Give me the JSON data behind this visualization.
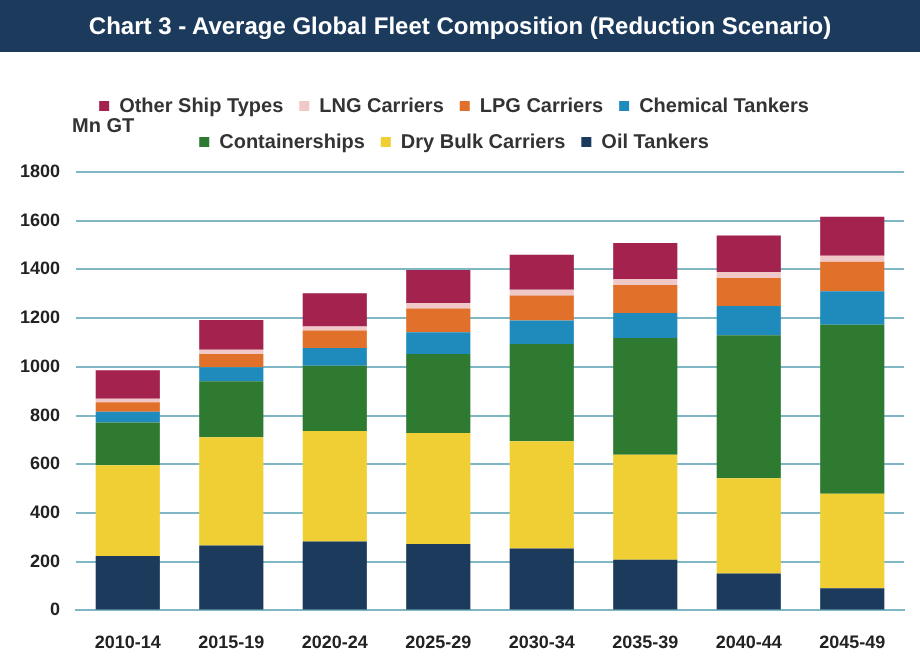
{
  "chart_data": {
    "type": "bar",
    "stacked": true,
    "title": "Chart 3 - Average Global Fleet Composition (Reduction Scenario)",
    "ylabel": "Mn GT",
    "categories": [
      "2010-14",
      "2015-19",
      "2020-24",
      "2025-29",
      "2030-34",
      "2035-39",
      "2040-44",
      "2045-49"
    ],
    "series": [
      {
        "name": "Oil Tankers",
        "color": "#1b3a5c",
        "values": [
          223,
          266,
          283,
          273,
          254,
          208,
          151,
          91
        ]
      },
      {
        "name": "Dry Bulk Carriers",
        "color": "#efcf34",
        "values": [
          373,
          445,
          454,
          455,
          440,
          431,
          392,
          388
        ]
      },
      {
        "name": "Containerships",
        "color": "#2e7a30",
        "values": [
          175,
          230,
          268,
          325,
          400,
          479,
          587,
          694
        ]
      },
      {
        "name": "Chemical Tankers",
        "color": "#1f8bbd",
        "values": [
          45,
          57,
          72,
          89,
          96,
          103,
          120,
          137
        ]
      },
      {
        "name": "LPG Carriers",
        "color": "#e0702a",
        "values": [
          39,
          55,
          72,
          98,
          103,
          115,
          115,
          122
        ]
      },
      {
        "name": "LNG Carriers",
        "color": "#f0c8c8",
        "values": [
          14,
          17,
          17,
          22,
          24,
          24,
          24,
          24
        ]
      },
      {
        "name": "Other Ship Types",
        "color": "#a3234e",
        "values": [
          117,
          122,
          136,
          136,
          143,
          148,
          150,
          160
        ]
      }
    ],
    "ylim": [
      0,
      1800
    ],
    "yticks": [
      0,
      200,
      400,
      600,
      800,
      1000,
      1200,
      1400,
      1600,
      1800
    ],
    "grid": "y",
    "legend": "top"
  }
}
